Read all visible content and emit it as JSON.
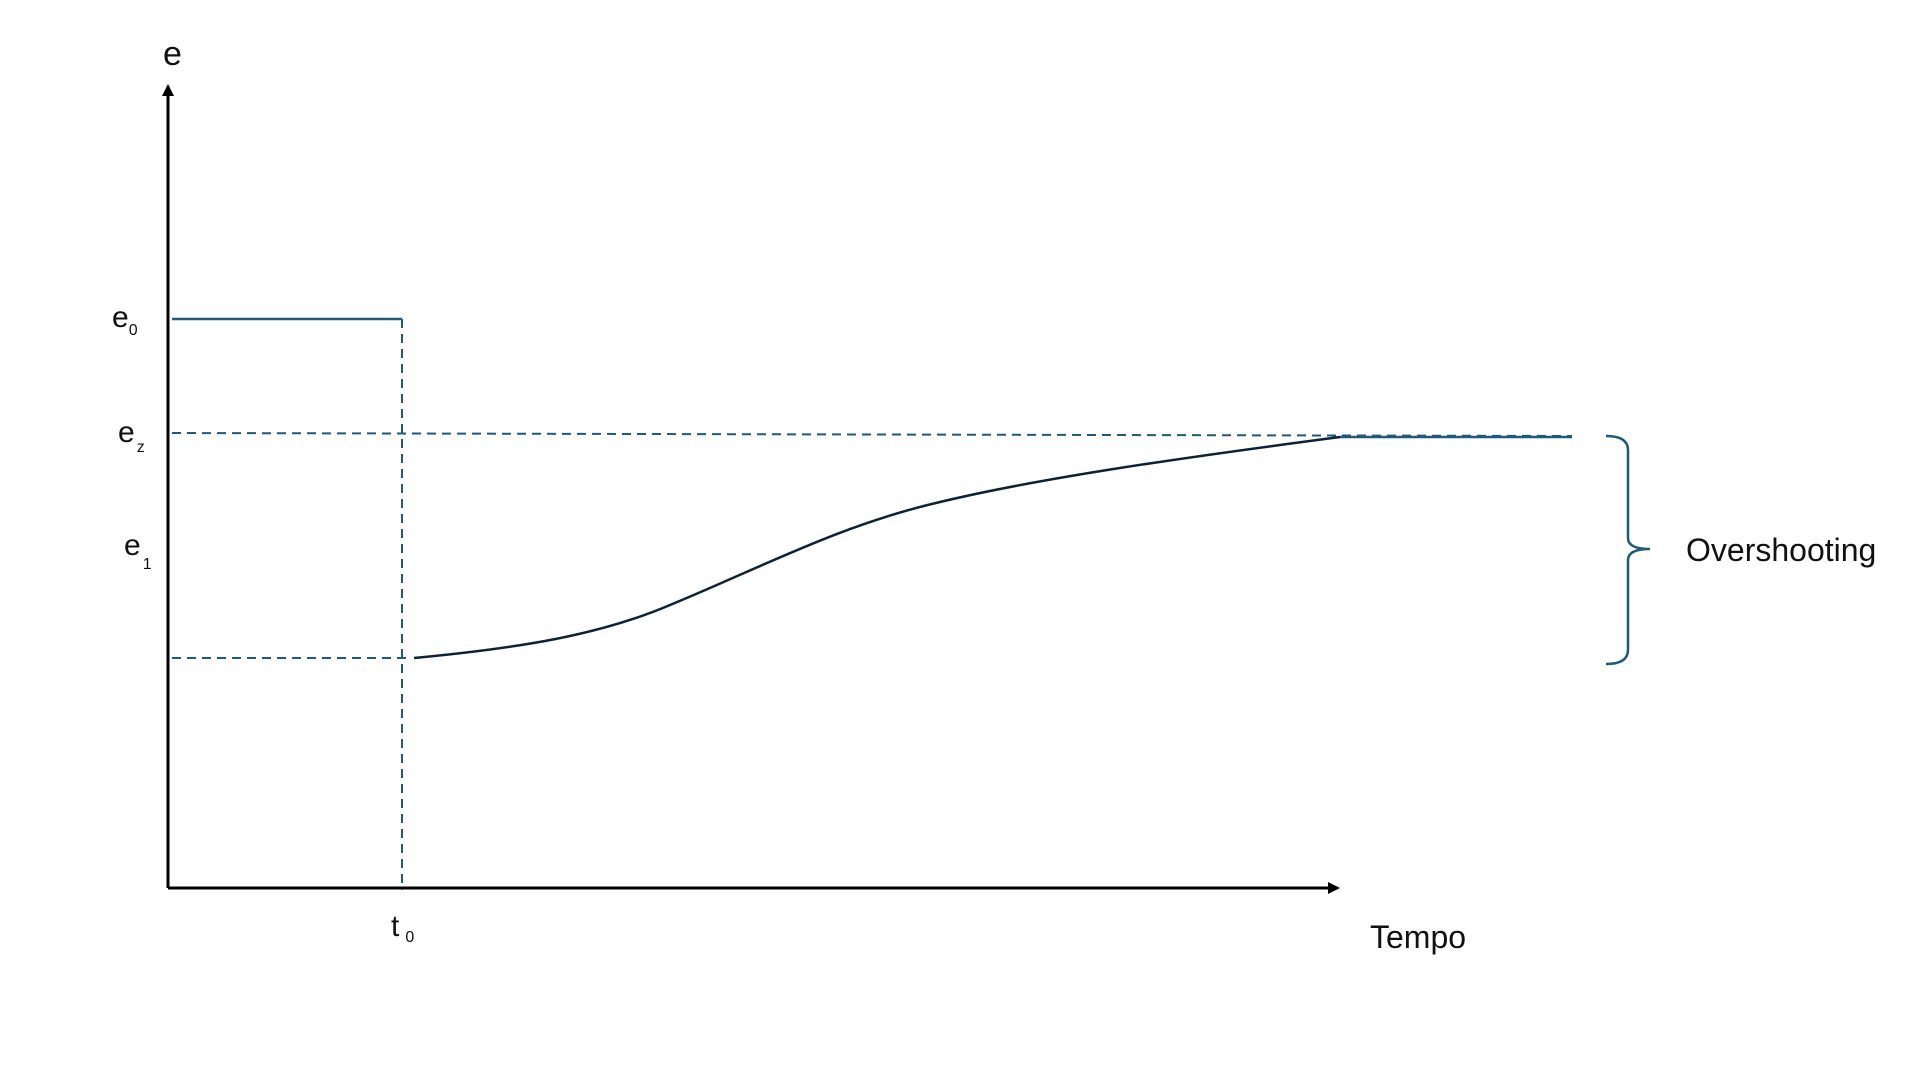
{
  "diagram": {
    "y_axis_label": "e",
    "x_axis_label": "Tempo",
    "y_levels": [
      {
        "id": "e0",
        "base": "e",
        "sub": "0"
      },
      {
        "id": "ez",
        "base": "e",
        "sub": "z"
      },
      {
        "id": "e1",
        "base": "e",
        "sub": "1"
      }
    ],
    "x_marker": {
      "base": "t",
      "sub": "0"
    },
    "brace_label": "Overshooting"
  },
  "colors": {
    "axis": "#000000",
    "guide": "#1f5a78",
    "curve": "#0d2233",
    "brace": "#1f5a78"
  }
}
